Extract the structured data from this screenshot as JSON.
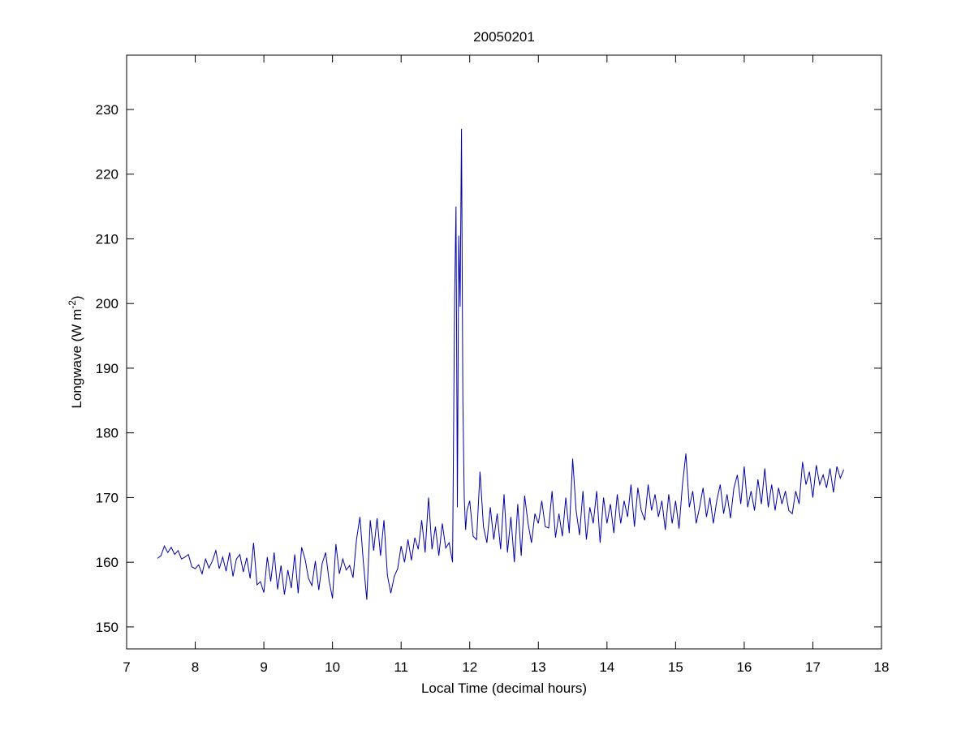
{
  "chart_data": {
    "type": "line",
    "title": "20050201",
    "xlabel": "Local Time (decimal hours)",
    "ylabel": {
      "text": "Longwave (W m",
      "superscript": "-2",
      "suffix": ")"
    },
    "color": "#0000a8",
    "xlim": [
      7,
      18
    ],
    "ylim": [
      146.6,
      238.4
    ],
    "xticks": [
      7,
      8,
      9,
      10,
      11,
      12,
      13,
      14,
      15,
      16,
      17,
      18
    ],
    "yticks": [
      150,
      160,
      170,
      180,
      190,
      200,
      210,
      220,
      230
    ],
    "x": [
      7.45,
      7.5,
      7.55,
      7.6,
      7.65,
      7.7,
      7.75,
      7.8,
      7.85,
      7.9,
      7.95,
      8.0,
      8.05,
      8.1,
      8.15,
      8.2,
      8.25,
      8.3,
      8.35,
      8.4,
      8.45,
      8.5,
      8.55,
      8.6,
      8.65,
      8.7,
      8.75,
      8.8,
      8.85,
      8.9,
      8.95,
      9.0,
      9.05,
      9.1,
      9.15,
      9.2,
      9.25,
      9.3,
      9.35,
      9.4,
      9.45,
      9.5,
      9.55,
      9.6,
      9.65,
      9.7,
      9.75,
      9.8,
      9.85,
      9.9,
      9.95,
      10.0,
      10.05,
      10.1,
      10.15,
      10.2,
      10.25,
      10.3,
      10.35,
      10.4,
      10.45,
      10.5,
      10.55,
      10.6,
      10.65,
      10.7,
      10.75,
      10.8,
      10.85,
      10.9,
      10.95,
      11.0,
      11.05,
      11.1,
      11.15,
      11.2,
      11.25,
      11.3,
      11.35,
      11.4,
      11.45,
      11.5,
      11.55,
      11.6,
      11.65,
      11.7,
      11.75,
      11.78,
      11.8,
      11.82,
      11.84,
      11.86,
      11.88,
      11.9,
      11.92,
      11.94,
      11.96,
      12.0,
      12.05,
      12.1,
      12.15,
      12.2,
      12.25,
      12.3,
      12.35,
      12.4,
      12.45,
      12.5,
      12.55,
      12.6,
      12.65,
      12.7,
      12.75,
      12.8,
      12.85,
      12.9,
      12.95,
      13.0,
      13.05,
      13.1,
      13.15,
      13.2,
      13.25,
      13.3,
      13.35,
      13.4,
      13.45,
      13.5,
      13.55,
      13.6,
      13.65,
      13.7,
      13.75,
      13.8,
      13.85,
      13.9,
      13.95,
      14.0,
      14.05,
      14.1,
      14.15,
      14.2,
      14.25,
      14.3,
      14.35,
      14.4,
      14.45,
      14.5,
      14.55,
      14.6,
      14.65,
      14.7,
      14.75,
      14.8,
      14.85,
      14.9,
      14.95,
      15.0,
      15.05,
      15.1,
      15.15,
      15.2,
      15.25,
      15.3,
      15.35,
      15.4,
      15.45,
      15.5,
      15.55,
      15.6,
      15.65,
      15.7,
      15.75,
      15.8,
      15.85,
      15.9,
      15.95,
      16.0,
      16.05,
      16.1,
      16.15,
      16.2,
      16.25,
      16.3,
      16.35,
      16.4,
      16.45,
      16.5,
      16.55,
      16.6,
      16.65,
      16.7,
      16.75,
      16.8,
      16.85,
      16.9,
      16.95,
      17.0,
      17.05,
      17.1,
      17.15,
      17.2,
      17.25,
      17.3,
      17.35,
      17.4,
      17.45
    ],
    "values": [
      160.6,
      161,
      162.5,
      161.5,
      162.3,
      161.2,
      161.8,
      160.5,
      160.8,
      161.2,
      159.3,
      159,
      159.6,
      158.2,
      160.5,
      159.1,
      160.2,
      161.8,
      159,
      160.8,
      158.6,
      161.5,
      157.8,
      160.5,
      161.2,
      158.5,
      160.7,
      157.5,
      163,
      156.5,
      157,
      155.3,
      160.8,
      157,
      161.5,
      155.8,
      159.5,
      155,
      158.8,
      156,
      161.2,
      155.2,
      162.3,
      160.5,
      157.5,
      156.4,
      160.2,
      155.7,
      159.8,
      161.5,
      157.2,
      154.4,
      162.8,
      158.2,
      160.5,
      158.8,
      159.5,
      157.6,
      163.5,
      167,
      160,
      154.2,
      166.5,
      161.8,
      166.8,
      161,
      166.5,
      158,
      155.2,
      157.8,
      159,
      162.5,
      160,
      163.5,
      160.3,
      163.8,
      162,
      166.5,
      161.5,
      170,
      162,
      165.5,
      161,
      166,
      162.2,
      163,
      160,
      201,
      215,
      168.5,
      210.5,
      199.5,
      227,
      185,
      170,
      165,
      168,
      169.5,
      164,
      163.5,
      174,
      165.5,
      163,
      168.5,
      163.5,
      167.5,
      162,
      170.5,
      161.5,
      167,
      160,
      169,
      161,
      170.3,
      166,
      163,
      167.5,
      166,
      169.5,
      165.5,
      165.3,
      171,
      163.8,
      167.5,
      164,
      170,
      164.5,
      176,
      168,
      164.2,
      171,
      163.5,
      168.5,
      166,
      171,
      163,
      170,
      166,
      169,
      164.5,
      170.5,
      166,
      169.5,
      167,
      172,
      165.5,
      171.5,
      168,
      166.5,
      172,
      168,
      170.5,
      167,
      169.5,
      165,
      170.5,
      166,
      169.5,
      165.2,
      172,
      176.8,
      168.5,
      171,
      166,
      168.5,
      171.5,
      167,
      170,
      166,
      169.5,
      172,
      167.5,
      170.5,
      166.8,
      171.5,
      173.5,
      169,
      174.8,
      168.5,
      171,
      168,
      172.8,
      169,
      174.5,
      168.5,
      172,
      168,
      171.5,
      169,
      171,
      168,
      167.5,
      171,
      169,
      175.5,
      172,
      174,
      170,
      175,
      172,
      173.5,
      171.5,
      174.5,
      170.8,
      174.8,
      173,
      174.3
    ]
  }
}
